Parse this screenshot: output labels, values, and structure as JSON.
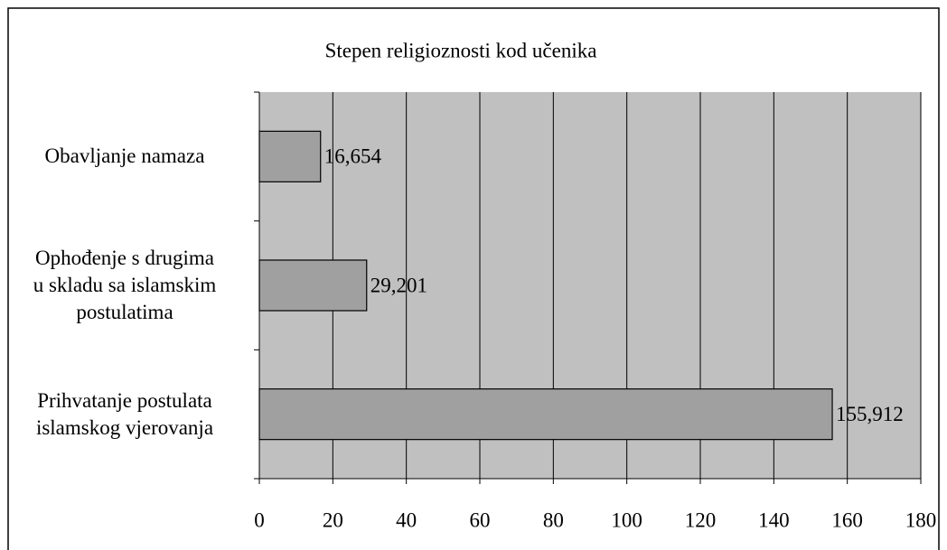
{
  "chart_data": {
    "type": "bar",
    "orientation": "horizontal",
    "title": "Stepen religioznosti kod učenika",
    "categories": [
      "Obavljanje namaza",
      "Ophođenje s drugima\nu skladu sa islamskim\npostulatima",
      "Prihvatanje postulata\nislamskog vjerovanja"
    ],
    "values": [
      16.654,
      29.201,
      155.912
    ],
    "value_labels": [
      "16,654",
      "29,201",
      "155,912"
    ],
    "color": "#a0a0a0",
    "plot_background": "#c0c0c0",
    "xlim": [
      0,
      180
    ],
    "xticks": [
      0,
      20,
      40,
      60,
      80,
      100,
      120,
      140,
      160,
      180
    ],
    "grid": true
  }
}
